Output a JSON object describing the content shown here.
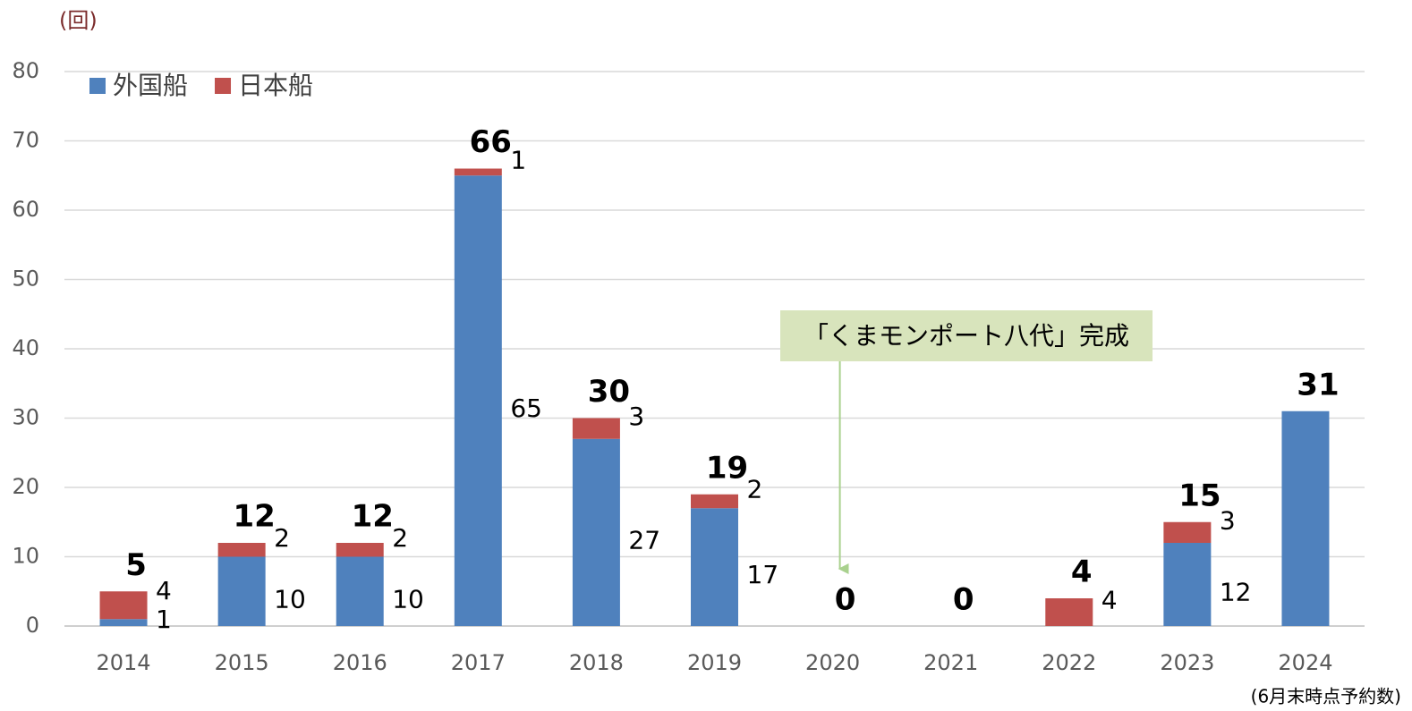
{
  "chart_data": {
    "type": "stacked_bar",
    "y_label": "(回)",
    "footnote": "(6月末時点予約数)",
    "annotation": "「くまモンポート八代」完成",
    "annotation_category": "2020",
    "categories": [
      "2014",
      "2015",
      "2016",
      "2017",
      "2018",
      "2019",
      "2020",
      "2021",
      "2022",
      "2023",
      "2024"
    ],
    "series": [
      {
        "name": "外国船",
        "color": "#4f81bd",
        "values": [
          1,
          10,
          10,
          65,
          27,
          17,
          0,
          0,
          0,
          12,
          31
        ],
        "value_labels": [
          "1",
          "10",
          "10",
          "65",
          "27",
          "17",
          null,
          null,
          null,
          "12",
          null
        ]
      },
      {
        "name": "日本船",
        "color": "#c0504d",
        "values": [
          4,
          2,
          2,
          1,
          3,
          2,
          0,
          0,
          4,
          3,
          0
        ],
        "value_labels": [
          "4",
          "2",
          "2",
          "1",
          "3",
          "2",
          null,
          null,
          "4",
          "3",
          null
        ]
      }
    ],
    "totals": [
      5,
      12,
      12,
      66,
      30,
      19,
      0,
      0,
      4,
      15,
      31
    ],
    "ylim": [
      0,
      80
    ],
    "yticks": [
      0,
      10,
      20,
      30,
      40,
      50,
      60,
      70,
      80
    ],
    "grid": true,
    "legend": "top-left"
  }
}
